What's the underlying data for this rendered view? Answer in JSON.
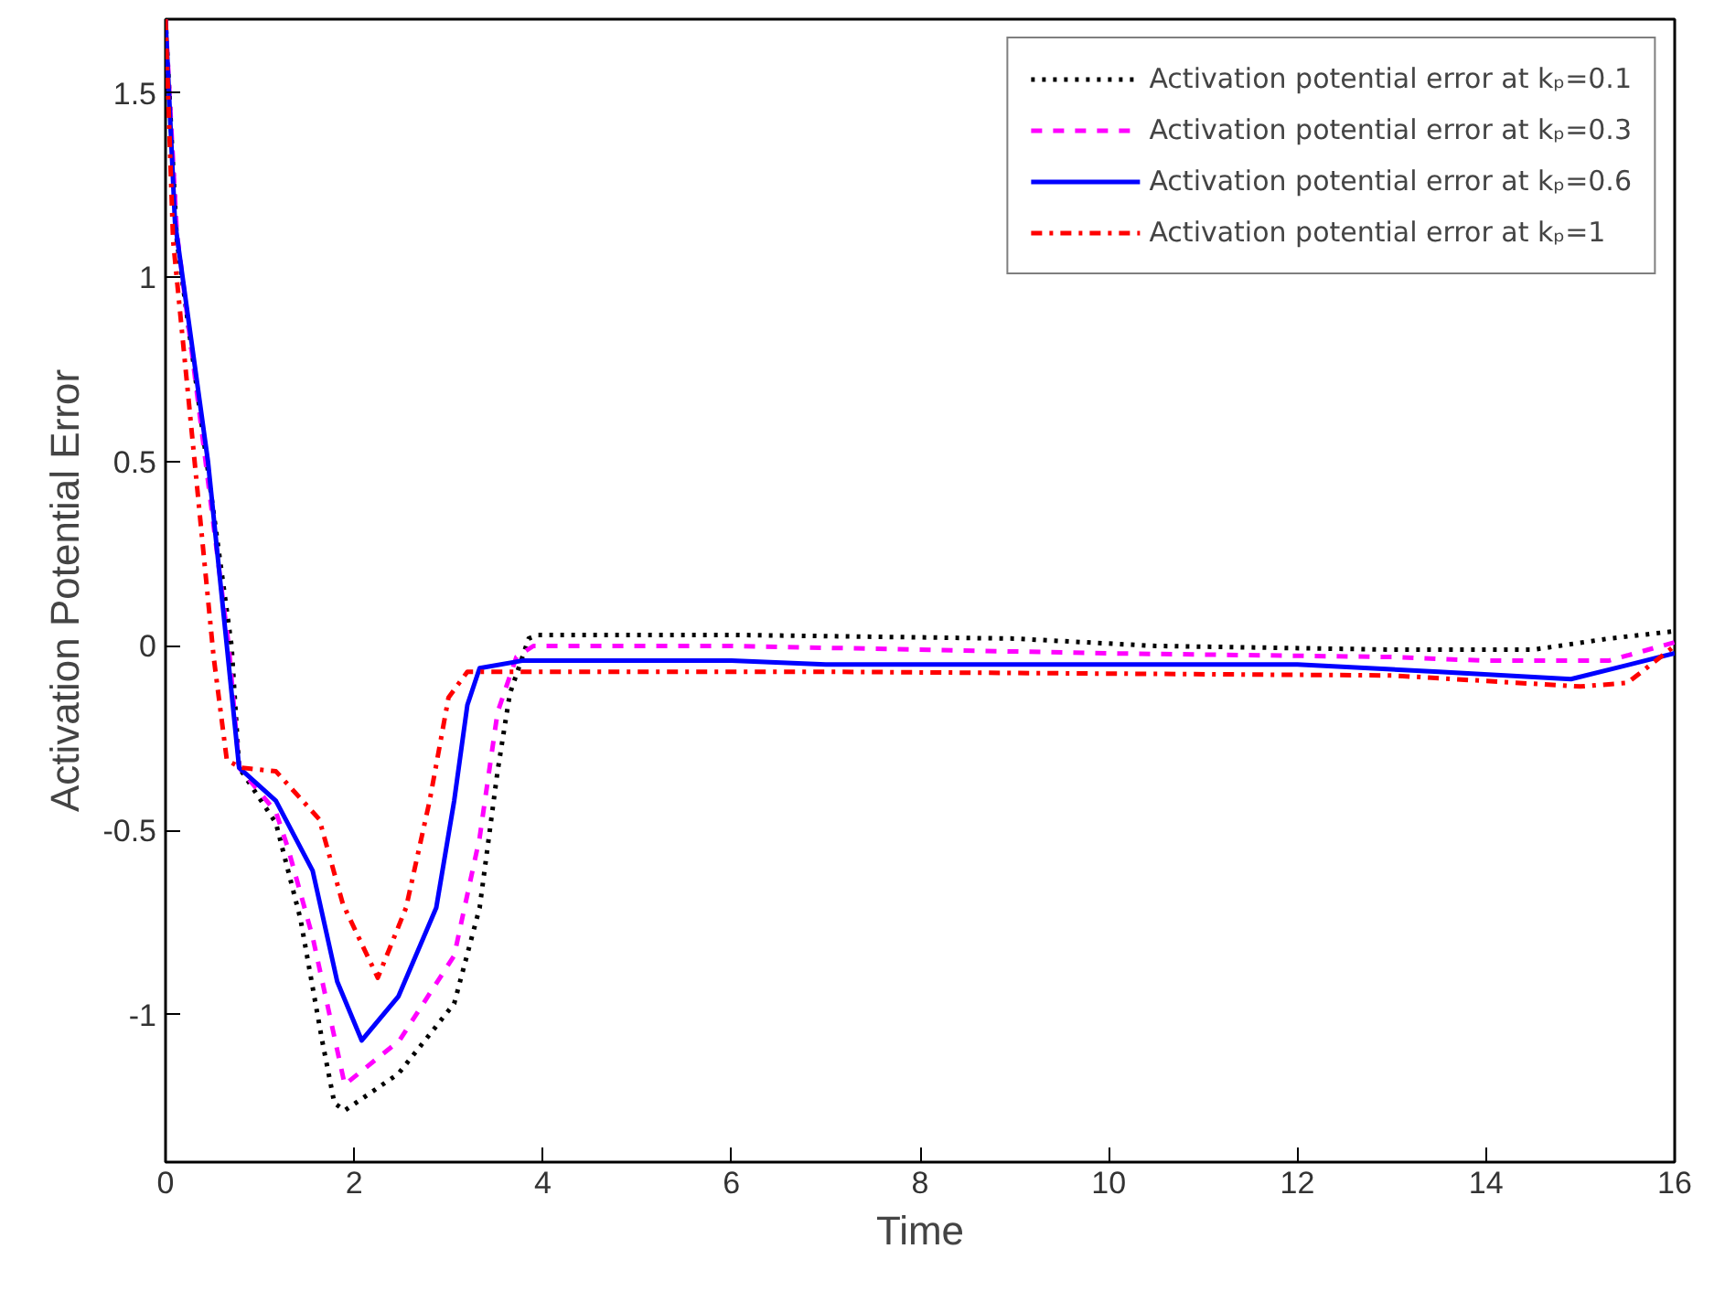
{
  "chart_data": {
    "type": "line",
    "xlabel": "Time",
    "ylabel": "Activation Potential Error",
    "xlim": [
      0,
      16
    ],
    "ylim": [
      -1.4,
      1.7
    ],
    "xticks": [
      0,
      2,
      4,
      6,
      8,
      10,
      12,
      14,
      16
    ],
    "yticks": [
      -1,
      -0.5,
      0,
      0.5,
      1,
      1.5
    ],
    "grid": false,
    "legend": "top right",
    "series": [
      {
        "name": "Activation potential error at kₚ=0.1",
        "color": "#000000",
        "line_style": "dotted",
        "x": [
          0,
          0.12,
          0.7,
          0.78,
          1.17,
          1.43,
          1.66,
          1.79,
          1.9,
          2.47,
          3.06,
          3.33,
          3.52,
          3.65,
          3.85,
          3.95,
          6,
          9,
          10.5,
          13,
          14.5,
          15.3,
          16
        ],
        "values": [
          1.7,
          1.1,
          0,
          -0.33,
          -0.48,
          -0.74,
          -1.07,
          -1.24,
          -1.26,
          -1.16,
          -0.97,
          -0.71,
          -0.34,
          -0.13,
          0.02,
          0.03,
          0.03,
          0.02,
          0.0,
          -0.01,
          -0.01,
          0.02,
          0.04
        ]
      },
      {
        "name": "Activation potential error at kₚ=0.3",
        "color": "#ff00ff",
        "line_style": "dashed",
        "x": [
          0,
          0.12,
          0.67,
          0.78,
          1.17,
          1.3,
          1.56,
          1.9,
          2.48,
          3.06,
          3.33,
          3.52,
          3.72,
          3.9,
          6,
          10,
          13,
          14,
          15.3,
          16
        ],
        "values": [
          1.7,
          1.12,
          0,
          -0.33,
          -0.45,
          -0.55,
          -0.79,
          -1.19,
          -1.07,
          -0.84,
          -0.52,
          -0.18,
          -0.03,
          0.0,
          0.0,
          -0.02,
          -0.03,
          -0.04,
          -0.04,
          0.01
        ]
      },
      {
        "name": "Activation potential error at kₚ=0.6",
        "color": "#0000ff",
        "line_style": "solid",
        "x": [
          0,
          0.1,
          0.45,
          0.65,
          0.78,
          1.17,
          1.56,
          1.82,
          2.08,
          2.47,
          2.87,
          3.06,
          3.2,
          3.33,
          3.78,
          6,
          7,
          12,
          13.5,
          14.9,
          16
        ],
        "values": [
          1.7,
          1.15,
          0.5,
          0,
          -0.33,
          -0.42,
          -0.61,
          -0.91,
          -1.07,
          -0.95,
          -0.71,
          -0.42,
          -0.16,
          -0.06,
          -0.04,
          -0.04,
          -0.05,
          -0.05,
          -0.07,
          -0.09,
          -0.02
        ]
      },
      {
        "name": "Activation potential error at kₚ=1",
        "color": "#ff0000",
        "line_style": "dashdot",
        "x": [
          0,
          0.08,
          0.51,
          0.65,
          0.8,
          1.17,
          1.63,
          1.88,
          2.25,
          2.55,
          2.8,
          3.0,
          3.2,
          7,
          13,
          15,
          15.5,
          16
        ],
        "values": [
          1.7,
          1.1,
          -0.03,
          -0.31,
          -0.33,
          -0.34,
          -0.47,
          -0.7,
          -0.9,
          -0.71,
          -0.42,
          -0.14,
          -0.07,
          -0.07,
          -0.08,
          -0.11,
          -0.1,
          0.0
        ]
      }
    ]
  }
}
